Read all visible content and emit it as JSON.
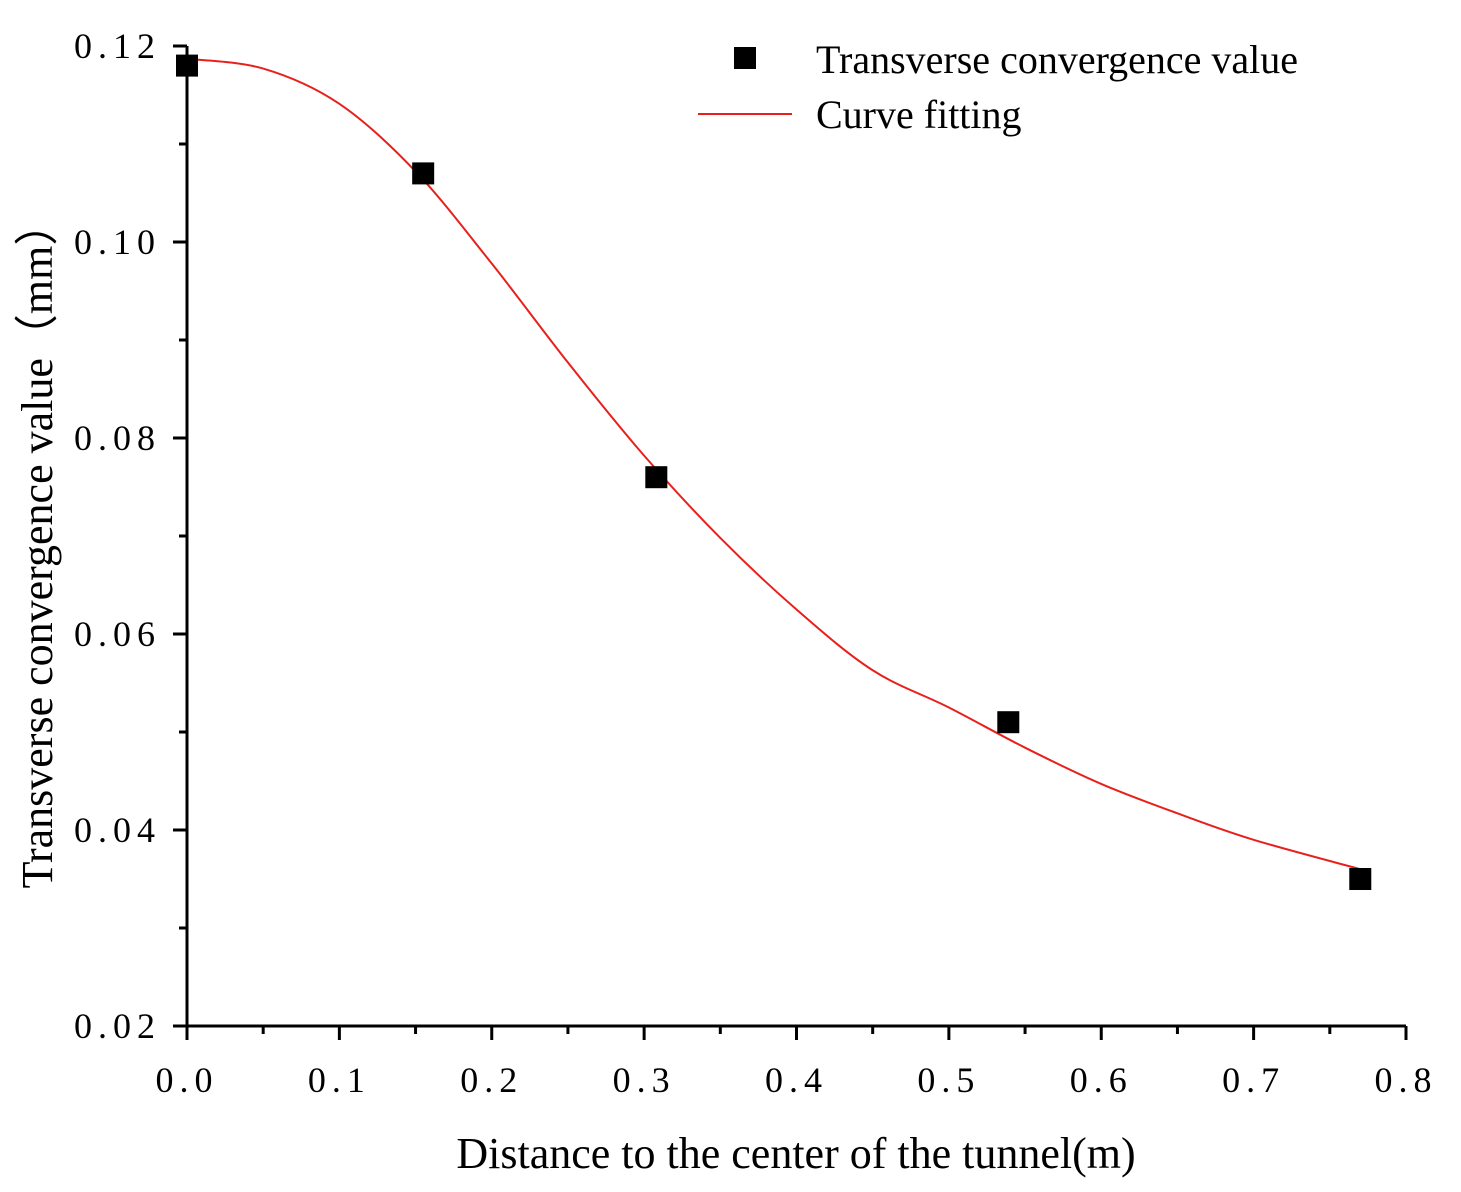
{
  "chart_data": {
    "type": "scatter",
    "title": "",
    "xlabel": "Distance to the center of the tunnel(m)",
    "ylabel": "Transverse convergence value（mm）",
    "xlim": [
      0.0,
      0.8
    ],
    "ylim": [
      0.02,
      0.12
    ],
    "x_ticks": [
      0.0,
      0.1,
      0.2,
      0.3,
      0.4,
      0.5,
      0.6,
      0.7,
      0.8
    ],
    "x_tick_labels": [
      "0.0",
      "0.1",
      "0.2",
      "0.3",
      "0.4",
      "0.5",
      "0.6",
      "0.7",
      "0.8"
    ],
    "y_ticks": [
      0.02,
      0.04,
      0.06,
      0.08,
      0.1,
      0.12
    ],
    "y_tick_labels": [
      "0.02",
      "0.04",
      "0.06",
      "0.08",
      "0.10",
      "0.12"
    ],
    "grid": false,
    "legend_position": "top-right",
    "series": [
      {
        "name": "Transverse convergence value",
        "kind": "scatter",
        "marker": "square",
        "color": "#000000",
        "x": [
          0.0,
          0.155,
          0.308,
          0.539,
          0.77
        ],
        "y": [
          0.118,
          0.107,
          0.076,
          0.051,
          0.035
        ]
      },
      {
        "name": "Curve fitting",
        "kind": "line",
        "color": "#e8201c",
        "x": [
          0.0,
          0.05,
          0.1,
          0.15,
          0.2,
          0.25,
          0.3,
          0.35,
          0.4,
          0.45,
          0.5,
          0.55,
          0.6,
          0.65,
          0.7,
          0.77
        ],
        "y": [
          0.1187,
          0.1177,
          0.1141,
          0.1072,
          0.0978,
          0.0877,
          0.0782,
          0.0698,
          0.0625,
          0.0563,
          0.0525,
          0.0484,
          0.0447,
          0.0417,
          0.039,
          0.036
        ]
      }
    ]
  }
}
